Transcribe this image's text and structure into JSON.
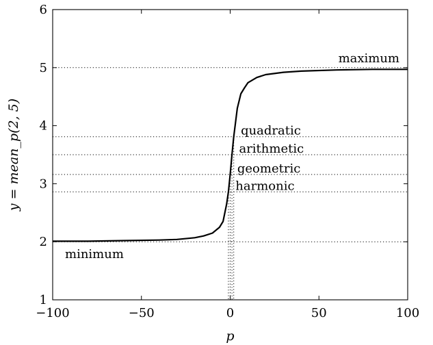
{
  "chart_data": {
    "type": "line",
    "xlabel": "p",
    "ylabel": "y = mean_p(2, 5)",
    "xlim": [
      -100,
      100
    ],
    "ylim": [
      1,
      6
    ],
    "x_ticks": [
      -100,
      -50,
      0,
      50,
      100
    ],
    "x_tick_labels": [
      "−100",
      "−50",
      "0",
      "50",
      "100"
    ],
    "y_ticks": [
      1,
      2,
      3,
      4,
      5,
      6
    ],
    "y_tick_labels": [
      "1",
      "2",
      "3",
      "4",
      "5",
      "6"
    ],
    "grid": false,
    "series": [
      {
        "x": [
          -100,
          -80,
          -60,
          -40,
          -30,
          -20,
          -15,
          -10,
          -6,
          -4,
          -2,
          -1,
          0,
          1,
          2,
          4,
          6,
          8,
          10,
          15,
          20,
          30,
          40,
          60,
          80,
          100
        ],
        "y": [
          2.01,
          2.01,
          2.02,
          2.03,
          2.04,
          2.07,
          2.1,
          2.15,
          2.25,
          2.35,
          2.65,
          2.86,
          3.16,
          3.5,
          3.81,
          4.3,
          4.55,
          4.65,
          4.74,
          4.83,
          4.88,
          4.92,
          4.94,
          4.96,
          4.97,
          4.97
        ]
      }
    ],
    "reference_lines": [
      {
        "label": "maximum",
        "y": 5,
        "p": null
      },
      {
        "label": "quadratic",
        "y": 3.81,
        "p": 2
      },
      {
        "label": "arithmetic",
        "y": 3.5,
        "p": 1
      },
      {
        "label": "geometric",
        "y": 3.16,
        "p": 0
      },
      {
        "label": "harmonic",
        "y": 2.86,
        "p": -1
      },
      {
        "label": "minimum",
        "y": 2,
        "p": null
      }
    ]
  }
}
